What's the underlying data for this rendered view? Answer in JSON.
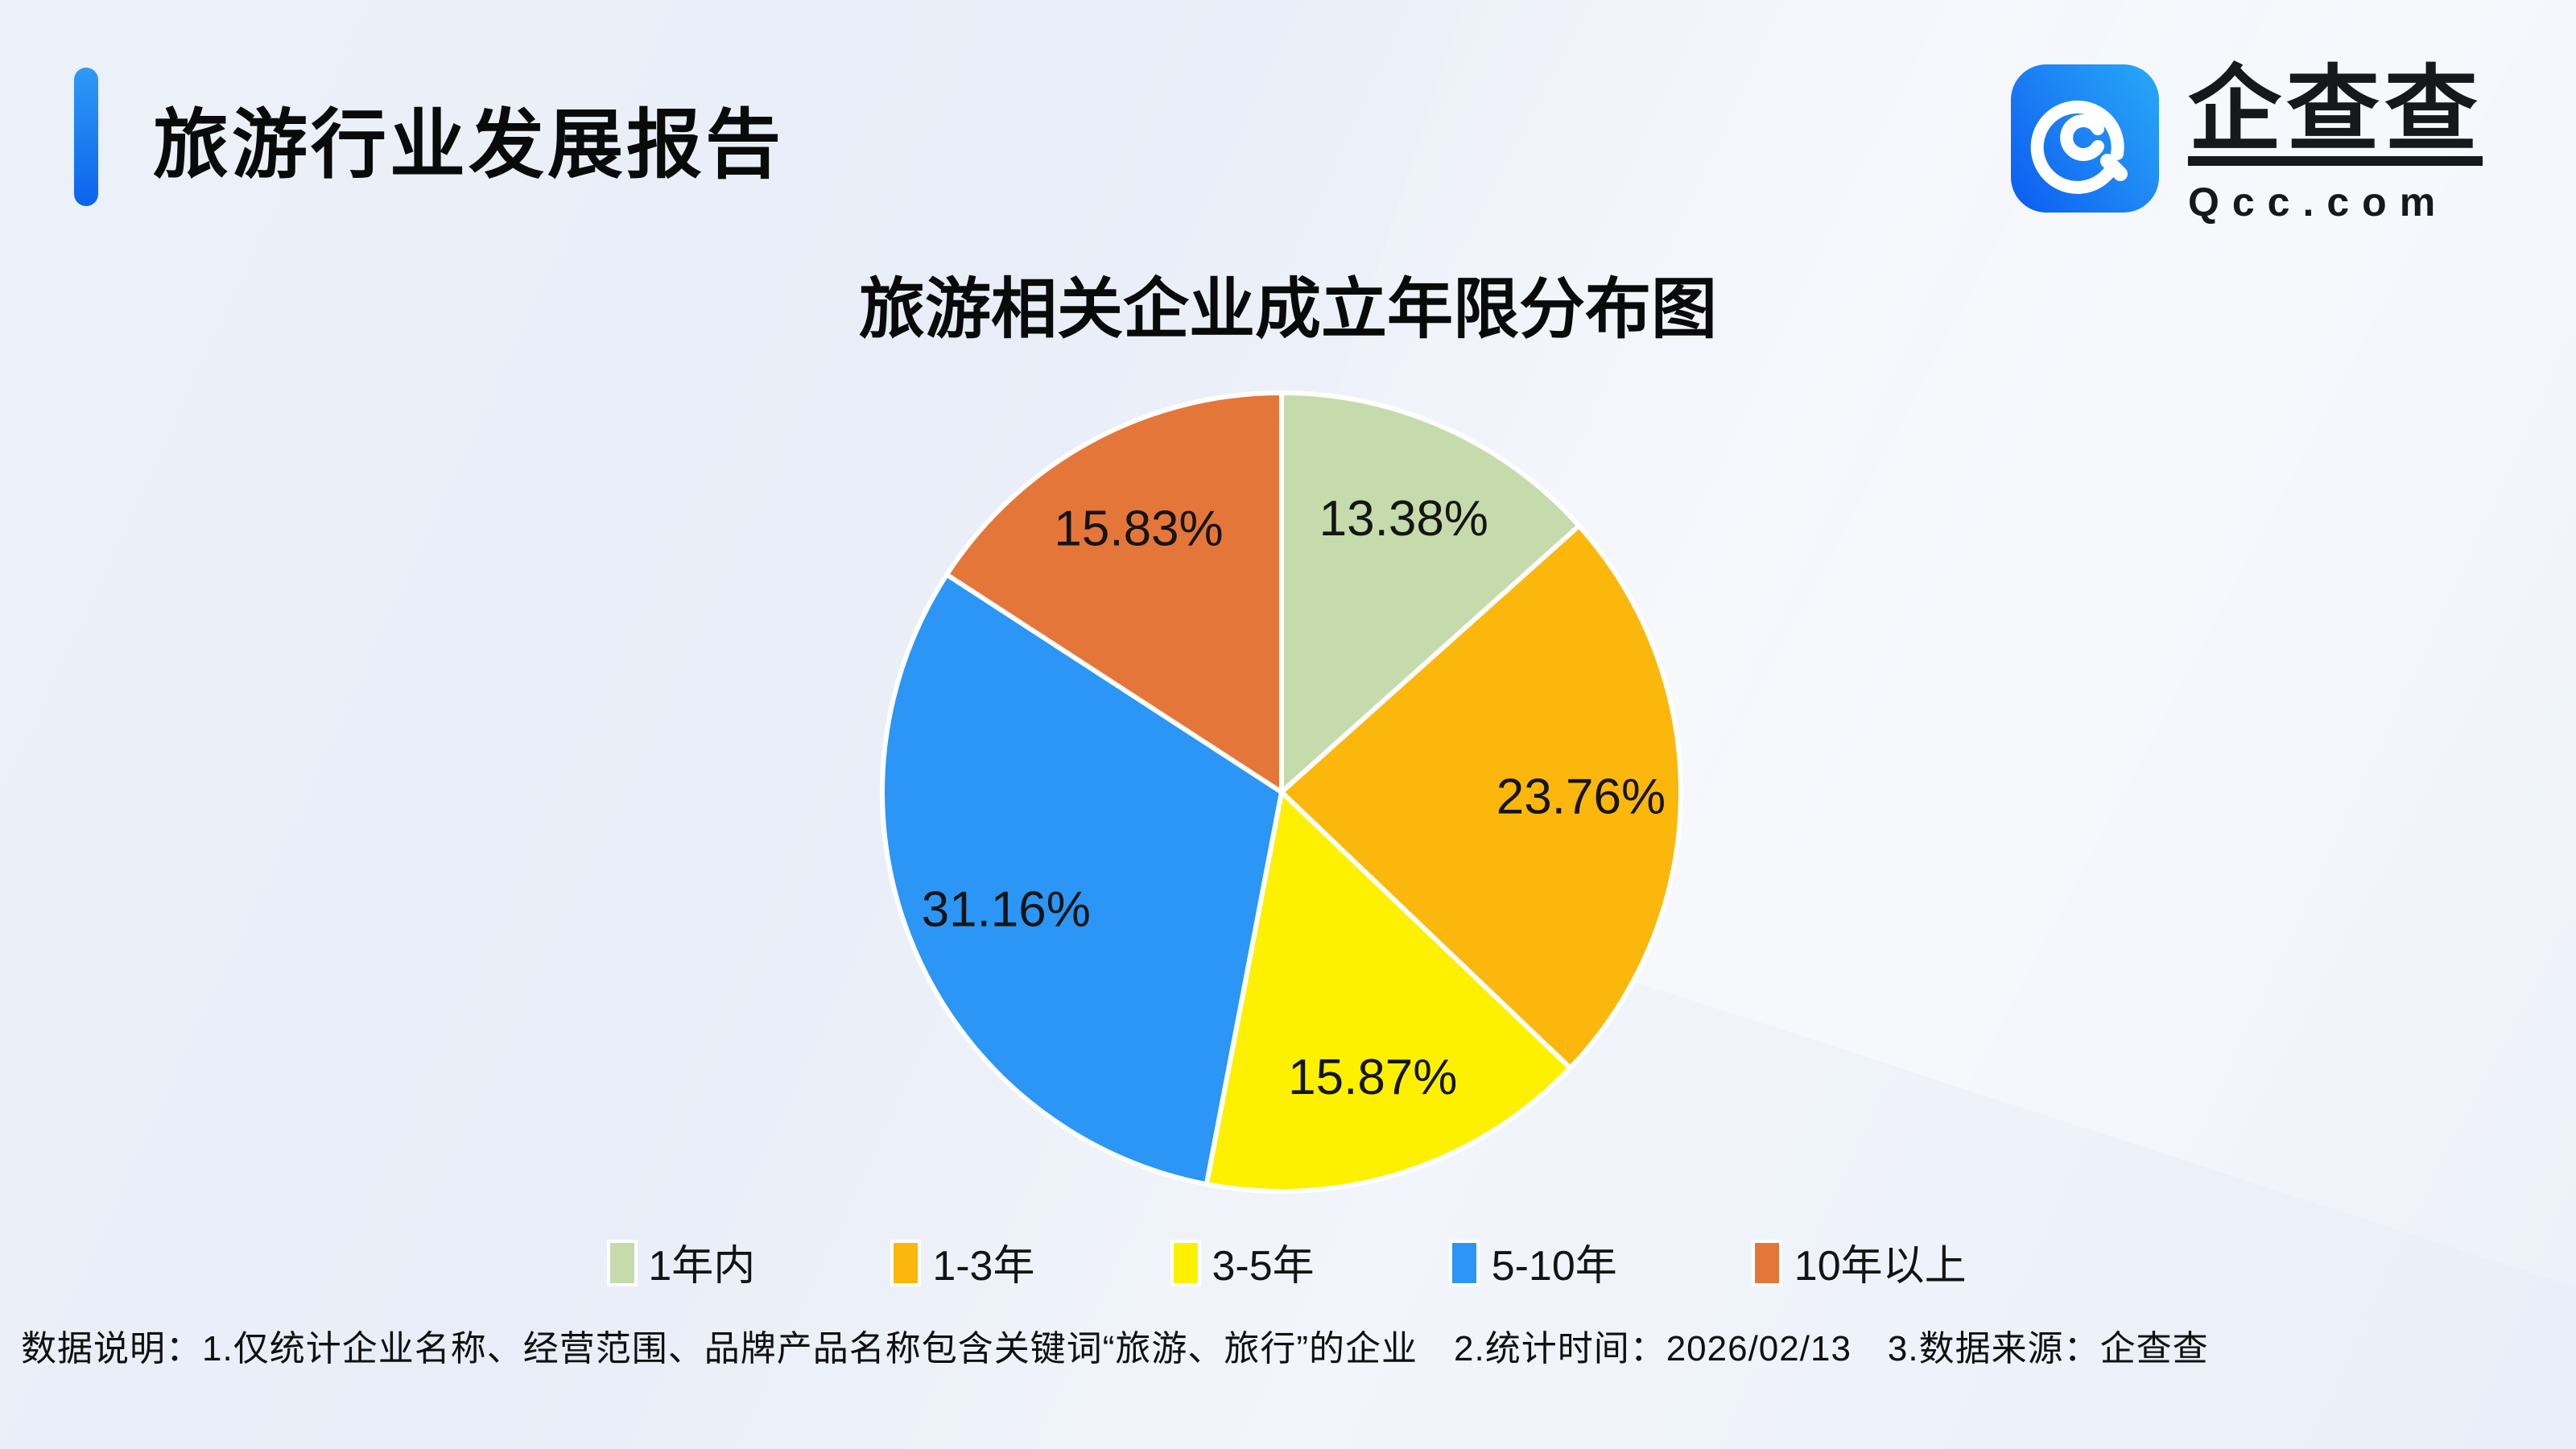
{
  "header": {
    "title": "旅游行业发展报告"
  },
  "logo": {
    "name": "企查查",
    "domain": "Qcc.com"
  },
  "theme": {
    "accent_blue": "#0c63ee",
    "logo_gradient": [
      "#0b5cf0",
      "#27a9f7"
    ],
    "background": "#edf1f9",
    "text": "#111111",
    "slice_gap_stroke": "#ffffff"
  },
  "chart_data": {
    "type": "pie",
    "title": "旅游相关企业成立年限分布图",
    "categories": [
      "1年内",
      "1-3年",
      "3-5年",
      "5-10年",
      "10年以上"
    ],
    "values": [
      13.38,
      23.76,
      15.87,
      31.16,
      15.83
    ],
    "labels": [
      "13.38%",
      "23.76%",
      "15.87%",
      "31.16%",
      "15.83%"
    ],
    "colors": [
      "#c5dbab",
      "#fcb70d",
      "#fdf100",
      "#2b96f5",
      "#e5763a"
    ],
    "start_angle_deg": 0,
    "direction": "clockwise",
    "label_position": "inside",
    "legend_position": "bottom",
    "unit": "%"
  },
  "footnote": "数据说明：1.仅统计企业名称、经营范围、品牌产品名称包含关键词“旅游、旅行”的企业　2.统计时间：2026/02/13　3.数据来源：企查查"
}
